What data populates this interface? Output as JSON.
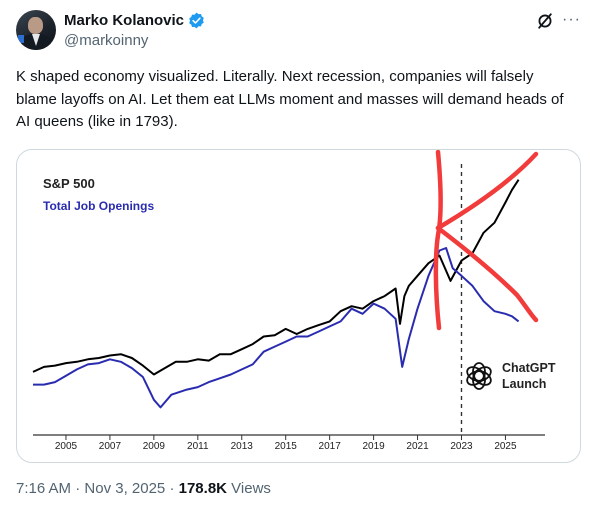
{
  "tweet": {
    "author_name": "Marko Kolanovic",
    "handle": "@markoinny",
    "text": "K shaped economy visualized. Literally. Next recession, companies will falsely blame layoffs on AI. Let them eat LLMs moment and masses will demand heads of AI queens (like in 1793).",
    "time": "7:16 AM",
    "date": "Nov 3, 2025",
    "views_count": "178.8K",
    "views_label": "Views",
    "separator": "·"
  },
  "icons": {
    "verified": "verified-badge-icon",
    "grok": "grok-icon",
    "more": "more-icon",
    "chatgpt": "openai-logo-icon"
  },
  "colors": {
    "sp500": "#000000",
    "job_openings": "#2a2cb0",
    "annotation": "#f23b3b",
    "verified": "#1d9bf0"
  },
  "chart_data": {
    "type": "line",
    "series": [
      {
        "name": "S&P 500",
        "color": "#000000",
        "x": [
          2003.5,
          2004.0,
          2004.5,
          2005.0,
          2005.5,
          2006.0,
          2006.5,
          2007.0,
          2007.5,
          2008.0,
          2008.5,
          2009.0,
          2009.5,
          2010.0,
          2010.5,
          2011.0,
          2011.5,
          2012.0,
          2012.5,
          2013.0,
          2013.5,
          2014.0,
          2014.5,
          2015.0,
          2015.5,
          2016.0,
          2016.5,
          2017.0,
          2017.5,
          2018.0,
          2018.5,
          2019.0,
          2019.5,
          2020.0,
          2020.2,
          2020.4,
          2020.6,
          2021.0,
          2021.5,
          2022.0,
          2022.5,
          2023.0,
          2023.5,
          2024.0,
          2024.5,
          2025.0,
          2025.3,
          2025.6
        ],
        "values": [
          7,
          9,
          9.5,
          10.5,
          11,
          12,
          12.5,
          13.5,
          14,
          12.5,
          9.5,
          6,
          8.5,
          11,
          11,
          12,
          11.5,
          14,
          14,
          16,
          18,
          21,
          21.5,
          24,
          22,
          24,
          25.5,
          27,
          31,
          33,
          32,
          35,
          37,
          40,
          26,
          37,
          41,
          45,
          50,
          53,
          43,
          51,
          54,
          62,
          66,
          74,
          79,
          83
        ]
      },
      {
        "name": "Total Job Openings",
        "color": "#2a2cb0",
        "x": [
          2003.5,
          2004.0,
          2004.5,
          2005.0,
          2005.5,
          2006.0,
          2006.5,
          2007.0,
          2007.5,
          2008.0,
          2008.5,
          2009.0,
          2009.3,
          2009.8,
          2010.5,
          2011.0,
          2011.5,
          2012.0,
          2012.5,
          2013.0,
          2013.5,
          2014.0,
          2014.5,
          2015.0,
          2015.5,
          2016.0,
          2016.5,
          2017.0,
          2017.5,
          2018.0,
          2018.5,
          2019.0,
          2019.5,
          2020.0,
          2020.3,
          2020.6,
          2021.0,
          2021.5,
          2022.0,
          2022.3,
          2022.6,
          2023.0,
          2023.5,
          2024.0,
          2024.5,
          2025.0,
          2025.3,
          2025.6
        ],
        "values": [
          2,
          2,
          3,
          5.5,
          8,
          10,
          10.5,
          12,
          11,
          8.5,
          5,
          -4,
          -7,
          -2,
          0,
          1,
          3,
          4.5,
          6,
          8,
          10,
          15,
          17,
          19,
          21,
          21,
          23,
          25,
          27,
          32,
          30,
          34,
          32,
          28,
          9,
          20,
          32,
          45,
          55,
          56,
          48,
          45,
          41,
          35,
          31,
          30,
          29,
          27
        ]
      }
    ],
    "xlim": [
      2003.5,
      2026.8
    ],
    "ylim": [
      -12,
      90
    ],
    "x_ticks": [
      "2005",
      "2007",
      "2009",
      "2011",
      "2013",
      "2015",
      "2017",
      "2019",
      "2021",
      "2023",
      "2025"
    ],
    "x_tick_values": [
      2005,
      2007,
      2009,
      2011,
      2013,
      2015,
      2017,
      2019,
      2021,
      2023,
      2025
    ],
    "annotation_x": 2023.0,
    "annotation_label_line1": "ChatGPT",
    "annotation_label_line2": "Launch",
    "legend": [
      "S&P 500",
      "Total Job Openings"
    ],
    "grid": false,
    "legend_position": "top-left"
  }
}
